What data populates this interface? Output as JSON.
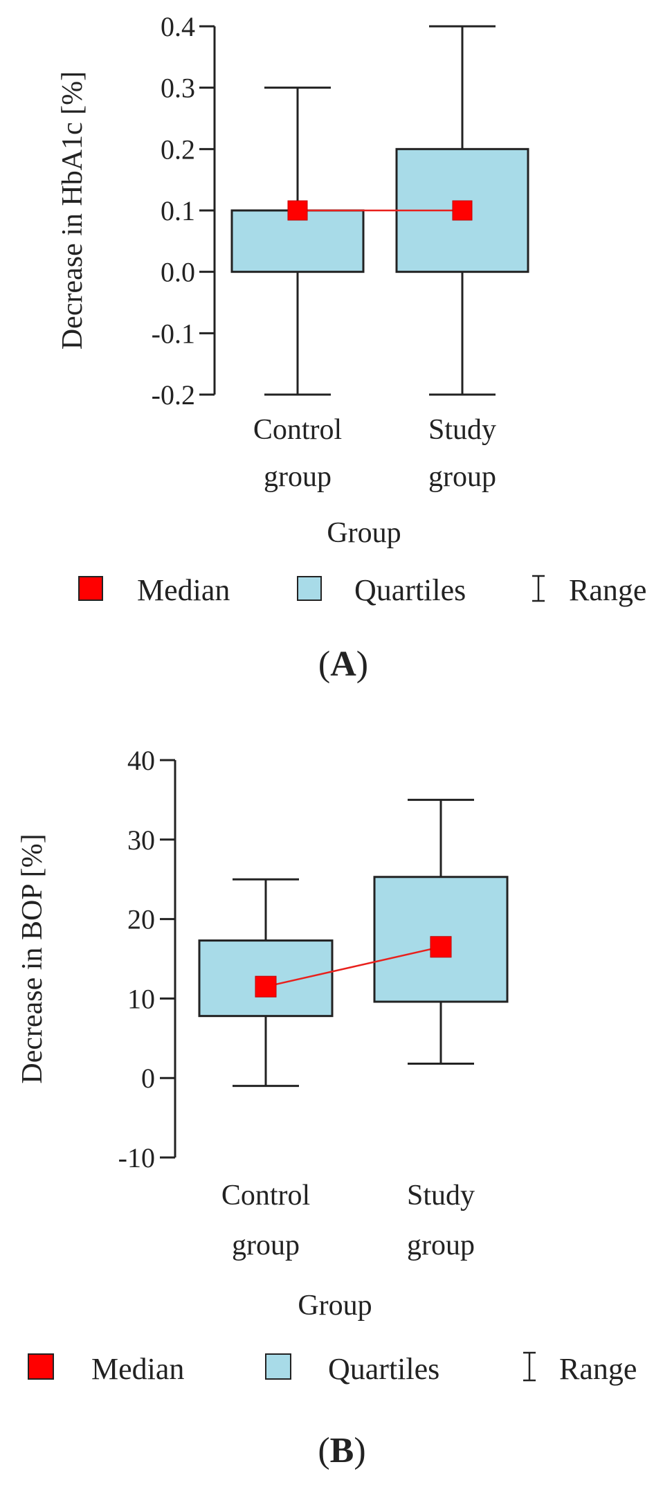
{
  "chart_data": [
    {
      "type": "boxplot",
      "panel_label": "A",
      "xlabel": "Group",
      "ylabel": "Decrease in HbA1c [%]",
      "ylim": [
        -0.2,
        0.4
      ],
      "yticks": [
        0.4,
        0.3,
        0.2,
        0.1,
        0.0,
        -0.1,
        -0.2
      ],
      "ytick_labels": [
        "0.4",
        "0.3",
        "0.2",
        "0.1",
        "0.0",
        "-0.1",
        "-0.2"
      ],
      "categories": [
        {
          "line1": "Control",
          "line2": "group"
        },
        {
          "line1": "Study",
          "line2": "group"
        }
      ],
      "series": [
        {
          "name": "Control group",
          "min": -0.2,
          "q1": 0.0,
          "median": 0.1,
          "q3": 0.1,
          "max": 0.3
        },
        {
          "name": "Study group",
          "min": -0.2,
          "q1": 0.0,
          "median": 0.1,
          "q3": 0.2,
          "max": 0.4
        }
      ],
      "legend": {
        "median": "Median",
        "quartiles": "Quartiles",
        "range": "Range"
      }
    },
    {
      "type": "boxplot",
      "panel_label": "B",
      "xlabel": "Group",
      "ylabel": "Decrease in BOP [%]",
      "ylim": [
        -10,
        40
      ],
      "yticks": [
        40,
        30,
        20,
        10,
        0,
        -10
      ],
      "ytick_labels": [
        "40",
        "30",
        "20",
        "10",
        "0",
        "-10"
      ],
      "categories": [
        {
          "line1": "Control",
          "line2": "group"
        },
        {
          "line1": "Study",
          "line2": "group"
        }
      ],
      "series": [
        {
          "name": "Control group",
          "min": -1,
          "q1": 7.8,
          "median": 11.5,
          "q3": 17.3,
          "max": 25
        },
        {
          "name": "Study group",
          "min": 1.8,
          "q1": 9.6,
          "median": 16.5,
          "q3": 25.3,
          "max": 35
        }
      ],
      "legend": {
        "median": "Median",
        "quartiles": "Quartiles",
        "range": "Range"
      }
    }
  ],
  "colors": {
    "box_fill": "#a8dbe8",
    "median": "#ff0000",
    "median_line": "#e8201c",
    "axis": "#222222"
  }
}
